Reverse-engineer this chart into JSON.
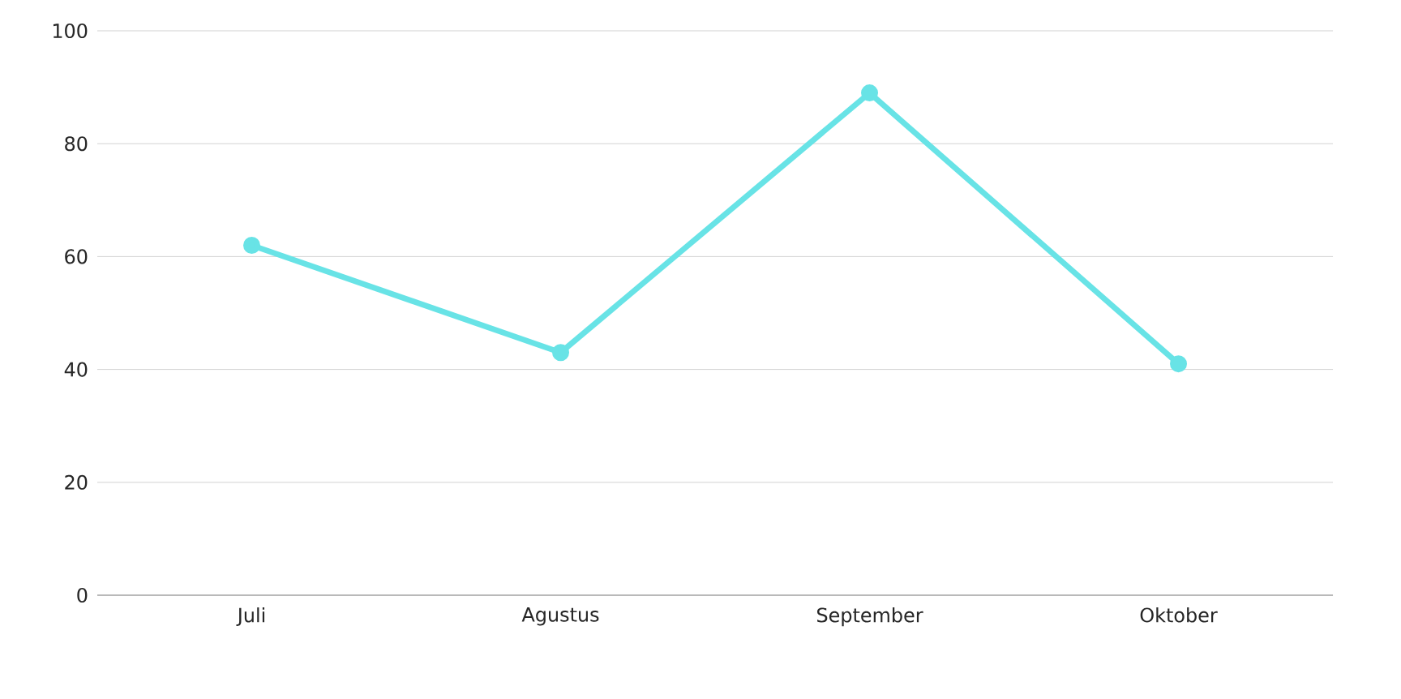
{
  "chart_data": {
    "type": "line",
    "categories": [
      "Juli",
      "Agustus",
      "September",
      "Oktober"
    ],
    "series": [
      {
        "color": "#68e3e6",
        "values": [
          62,
          43,
          89,
          41
        ]
      }
    ],
    "ylim": [
      0,
      100
    ],
    "yticks": [
      0,
      20,
      40,
      60,
      80,
      100
    ],
    "grid": "y",
    "marker": "circle",
    "line_style": "solid"
  }
}
